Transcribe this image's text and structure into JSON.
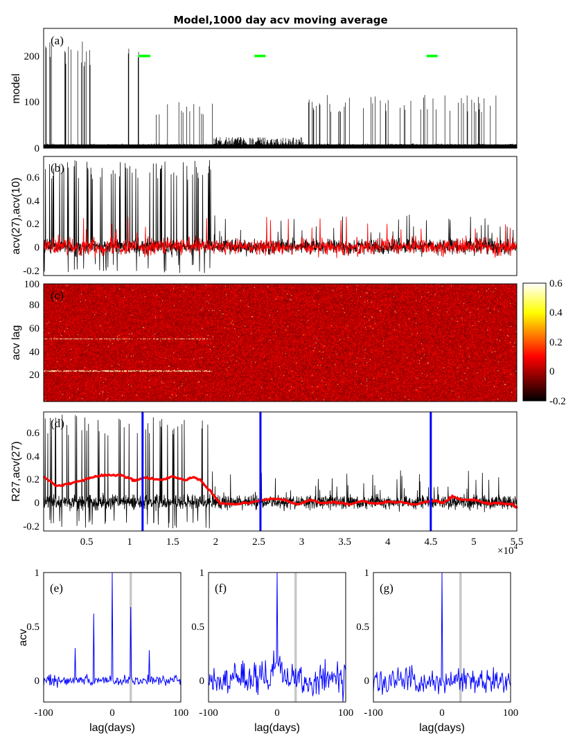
{
  "chart_data": [
    {
      "panel": "(a)",
      "type": "line",
      "title": "Model,1000 day acv moving average",
      "ylabel": "model",
      "xlim": [
        0,
        55000
      ],
      "ylim": [
        0,
        260
      ],
      "yticks": [
        "0",
        "100",
        "200"
      ],
      "series": [
        {
          "color": "#000000",
          "segments": [
            {
              "x_range": [
                0,
                12000
              ],
              "peak": 230
            },
            {
              "x_range": [
                12000,
                19800
              ],
              "peak": 100
            },
            {
              "x_range": [
                19800,
                30200
              ],
              "peak": 20
            },
            {
              "x_range": [
                30200,
                55000
              ],
              "peak": 110
            }
          ]
        },
        {
          "color": "#00ff00",
          "markers_y": 200,
          "markers_x": [
            [
              11000,
              12400
            ],
            [
              24500,
              25800
            ],
            [
              44500,
              45800
            ]
          ]
        }
      ]
    },
    {
      "panel": "(b)",
      "type": "line",
      "ylabel": "acv(27),acv(10)",
      "xlim": [
        0,
        55000
      ],
      "ylim": [
        -0.25,
        0.78
      ],
      "yticks": [
        "-0.2",
        "0",
        "0.2",
        "0.4",
        "0.6"
      ],
      "series": [
        {
          "color": "#000000",
          "segments": [
            {
              "x_range": [
                0,
                19500
              ],
              "peak": 0.72
            },
            {
              "x_range": [
                19500,
                55000
              ],
              "peak": 0.2
            }
          ]
        },
        {
          "color": "#ff0000",
          "segments": [
            {
              "x_range": [
                0,
                55000
              ],
              "peak": 0.2
            }
          ]
        }
      ]
    },
    {
      "panel": "(c)",
      "type": "heatmap",
      "ylabel": "acv lag",
      "xlim": [
        0,
        55000
      ],
      "ylim": [
        1,
        100
      ],
      "yticks": [
        "20",
        "40",
        "60",
        "80",
        "100"
      ],
      "colorbar": {
        "range": [
          -0.2,
          0.6
        ],
        "ticks": [
          "0.6",
          "0.4",
          "0.2",
          "0",
          "-0.2"
        ],
        "colormap": "hot"
      },
      "bright_rows": [
        27,
        54
      ],
      "bright_rows_x_range": [
        0,
        19500
      ]
    },
    {
      "panel": "(d)",
      "type": "line",
      "ylabel": "R27,acv(27)",
      "xlim": [
        0,
        55000
      ],
      "ylim": [
        -0.25,
        0.78
      ],
      "yticks": [
        "-0.2",
        "0",
        "0.2",
        "0.4",
        "0.6"
      ],
      "xticks": [
        "0.5",
        "1",
        "1.5",
        "2",
        "2.5",
        "3",
        "3.5",
        "4",
        "4.5",
        "5",
        "5.5"
      ],
      "xtick_values": [
        5000,
        10000,
        15000,
        20000,
        25000,
        30000,
        35000,
        40000,
        45000,
        50000,
        55000
      ],
      "x_multiplier": "×10",
      "x_multiplier_exp": "4",
      "vertical_lines_x": [
        11500,
        25200,
        45000
      ],
      "series": [
        {
          "color": "#000000",
          "segments": [
            {
              "x_range": [
                0,
                19500
              ],
              "peak": 0.72
            },
            {
              "x_range": [
                19500,
                55000
              ],
              "peak": 0.2
            }
          ]
        },
        {
          "color": "#ff0000",
          "name": "R27",
          "points": [
            [
              0,
              0.22
            ],
            [
              1500,
              0.14
            ],
            [
              3000,
              0.16
            ],
            [
              4500,
              0.19
            ],
            [
              6000,
              0.22
            ],
            [
              7500,
              0.24
            ],
            [
              9000,
              0.23
            ],
            [
              10500,
              0.19
            ],
            [
              12000,
              0.21
            ],
            [
              13500,
              0.19
            ],
            [
              15000,
              0.22
            ],
            [
              16500,
              0.19
            ],
            [
              17500,
              0.22
            ],
            [
              18500,
              0.17
            ],
            [
              19500,
              0.08
            ],
            [
              20500,
              -0.01
            ],
            [
              22000,
              -0.02
            ],
            [
              23500,
              -0.01
            ],
            [
              25000,
              0.01
            ],
            [
              26500,
              0.03
            ],
            [
              28000,
              0.02
            ],
            [
              29500,
              -0.02
            ],
            [
              31000,
              0.02
            ],
            [
              32500,
              -0.01
            ],
            [
              34000,
              0.0
            ],
            [
              35500,
              -0.02
            ],
            [
              37000,
              0.01
            ],
            [
              38500,
              -0.01
            ],
            [
              40000,
              0.0
            ],
            [
              41500,
              0.0
            ],
            [
              43000,
              -0.02
            ],
            [
              44500,
              0.0
            ],
            [
              45500,
              0.01
            ],
            [
              46500,
              -0.01
            ],
            [
              47500,
              0.05
            ],
            [
              48500,
              0.02
            ],
            [
              50000,
              0.02
            ],
            [
              51500,
              -0.01
            ],
            [
              53000,
              -0.01
            ],
            [
              54500,
              -0.02
            ],
            [
              55000,
              -0.05
            ]
          ]
        }
      ]
    },
    {
      "panel": "(e)",
      "type": "line",
      "ylabel": "acv",
      "xlabel": "lag(days)",
      "xlim": [
        -100,
        100
      ],
      "ylim": [
        -0.2,
        1.0
      ],
      "xticks": [
        "-100",
        "0",
        "100"
      ],
      "yticks": [
        "0",
        "0.5",
        "1"
      ],
      "gray_line_x": 27,
      "series": [
        {
          "color": "#0000ff",
          "peaks": [
            [
              0,
              1.0
            ],
            [
              -27,
              0.62
            ],
            [
              27,
              0.68
            ],
            [
              -54,
              0.3
            ],
            [
              54,
              0.28
            ]
          ],
          "noise": 0.05
        }
      ]
    },
    {
      "panel": "(f)",
      "type": "line",
      "xlabel": "lag(days)",
      "xlim": [
        -100,
        100
      ],
      "ylim": [
        -0.2,
        1.0
      ],
      "xticks": [
        "-100",
        "0",
        "100"
      ],
      "yticks": [
        "0",
        "0.5",
        "1"
      ],
      "gray_line_x": 27,
      "series": [
        {
          "color": "#0000ff",
          "peaks": [
            [
              0,
              1.0
            ]
          ],
          "noise": 0.16,
          "shoulder": 0.18
        }
      ]
    },
    {
      "panel": "(g)",
      "type": "line",
      "xlabel": "lag(days)",
      "xlim": [
        -100,
        100
      ],
      "ylim": [
        -0.2,
        1.0
      ],
      "xticks": [
        "-100",
        "0",
        "100"
      ],
      "yticks": [
        "0",
        "0.5",
        "1"
      ],
      "gray_line_x": 27,
      "series": [
        {
          "color": "#0000ff",
          "peaks": [
            [
              0,
              1.0
            ]
          ],
          "noise": 0.12
        }
      ]
    }
  ]
}
